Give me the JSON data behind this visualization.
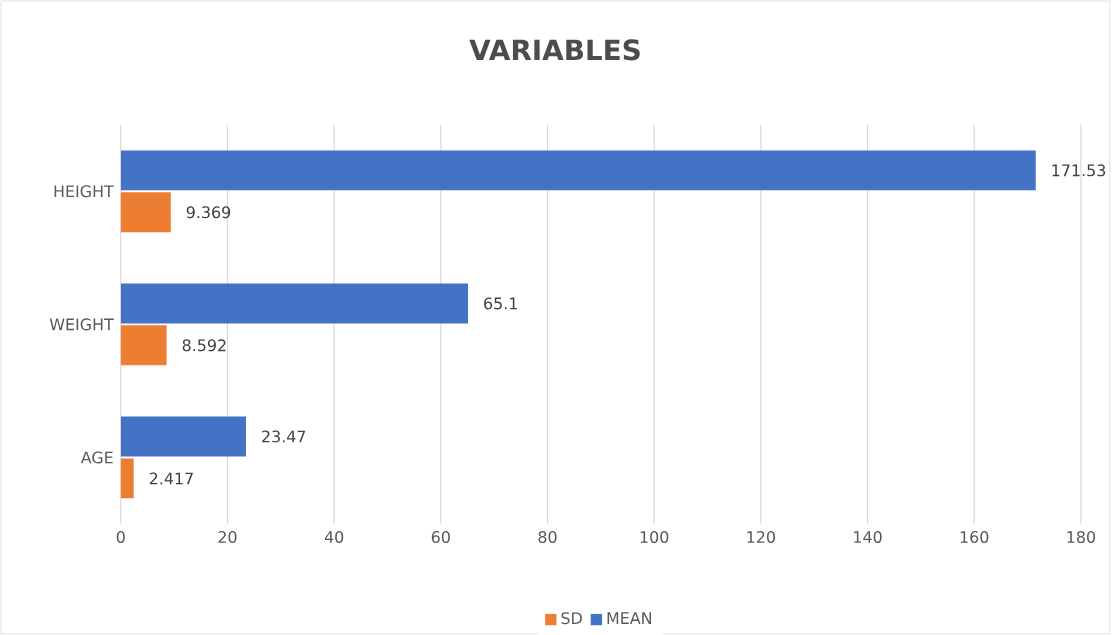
{
  "chart_data": {
    "type": "bar",
    "orientation": "horizontal",
    "title": "VARIABLES",
    "categories": [
      "HEIGHT",
      "WEIGHT",
      "AGE"
    ],
    "series": [
      {
        "name": "SD",
        "color": "#ed7d31",
        "values": [
          9.369,
          8.592,
          2.417
        ]
      },
      {
        "name": "MEAN",
        "color": "#4472c4",
        "values": [
          171.53,
          65.1,
          23.47
        ]
      }
    ],
    "xlim": [
      0,
      180
    ],
    "xticks": [
      0,
      20,
      40,
      60,
      80,
      100,
      120,
      140,
      160,
      180
    ],
    "grid": "x",
    "legend": "bottom",
    "data_labels": true
  }
}
